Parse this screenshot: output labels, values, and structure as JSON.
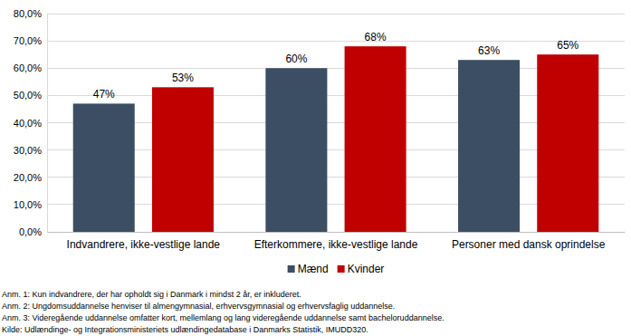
{
  "chart_data": {
    "type": "bar",
    "categories": [
      "Indvandrere, ikke-vestlige lande",
      "Efterkommere, ikke-vestlige lande",
      "Personer med dansk oprindelse"
    ],
    "series": [
      {
        "name": "Mænd",
        "color": "#3b4e63",
        "values": [
          47,
          60,
          63
        ],
        "value_labels": [
          "47%",
          "60%",
          "63%"
        ]
      },
      {
        "name": "Kvinder",
        "color": "#c00000",
        "values": [
          53,
          68,
          65
        ],
        "value_labels": [
          "53%",
          "68%",
          "65%"
        ]
      }
    ],
    "ylim": [
      0,
      80
    ],
    "yticks": [
      {
        "value": 0,
        "label": "0,0%"
      },
      {
        "value": 10,
        "label": "10,0%"
      },
      {
        "value": 20,
        "label": "20,0%"
      },
      {
        "value": 30,
        "label": "30,0%"
      },
      {
        "value": 40,
        "label": "40,0%"
      },
      {
        "value": 50,
        "label": "50,0%"
      },
      {
        "value": 60,
        "label": "60,0%"
      },
      {
        "value": 70,
        "label": "70,0%"
      },
      {
        "value": 80,
        "label": "80,0%"
      }
    ],
    "grid": true,
    "data_labels": true,
    "legend": "bottom",
    "annotations": [
      "Anm. 1: Kun indvandrere, der har opholdt sig i Danmark i mindst 2 år, er inkluderet.",
      "Anm. 2: Ungdomsuddannelse henviser til almengymnasial, erhvervsgymnasial og erhvervsfaglig uddannelse.",
      "Anm. 3: Videregående uddannelse omfatter kort, mellemlang og lang videregående uddannelse samt bacheloruddannelse.",
      "Kilde: Udlændinge- og Integrationsministeriets udlændingedatabase i Danmarks Statistik, IMUDD320."
    ]
  }
}
